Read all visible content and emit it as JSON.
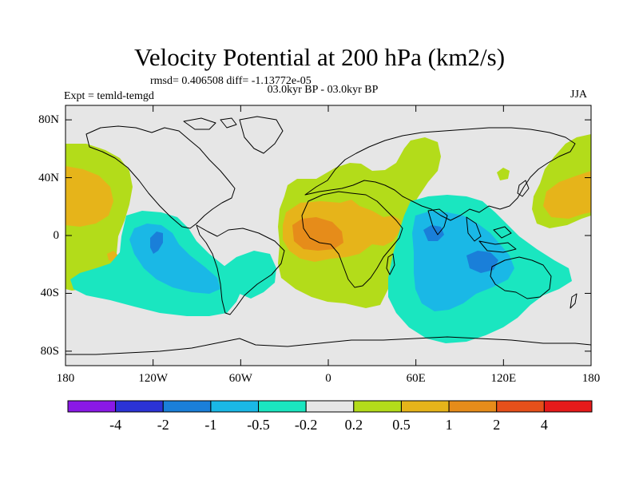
{
  "title": "Velocity Potential at 200 hPa (km2/s)",
  "stats": "rmsd= 0.406508 diff= -1.13772e-05",
  "subtitle": "03.0kyr BP - 03.0kyr BP",
  "experiment": "Expt = temld-temgd",
  "season": "JJA",
  "lat_axis": {
    "labels": [
      "80N",
      "40N",
      "0",
      "40S",
      "80S"
    ],
    "values": [
      80,
      40,
      0,
      -40,
      -80
    ]
  },
  "lon_axis": {
    "labels": [
      "180",
      "120W",
      "60W",
      "0",
      "60E",
      "120E",
      "180"
    ],
    "values": [
      -180,
      -120,
      -60,
      0,
      60,
      120,
      180
    ]
  },
  "colorbar": {
    "levels": [
      "-4",
      "-2",
      "-1",
      "-0.5",
      "-0.2",
      "0.2",
      "0.5",
      "1",
      "2",
      "4"
    ],
    "colors": [
      "#8a19e6",
      "#2b33d6",
      "#1a7fd9",
      "#1ab8e6",
      "#1ae6c0",
      "#e6e6e6",
      "#b3dc1a",
      "#e6b41a",
      "#e68c1a",
      "#e6501a",
      "#e61a1a"
    ]
  },
  "colors": {
    "background": "#e6e6e6",
    "coast": "#000000"
  }
}
